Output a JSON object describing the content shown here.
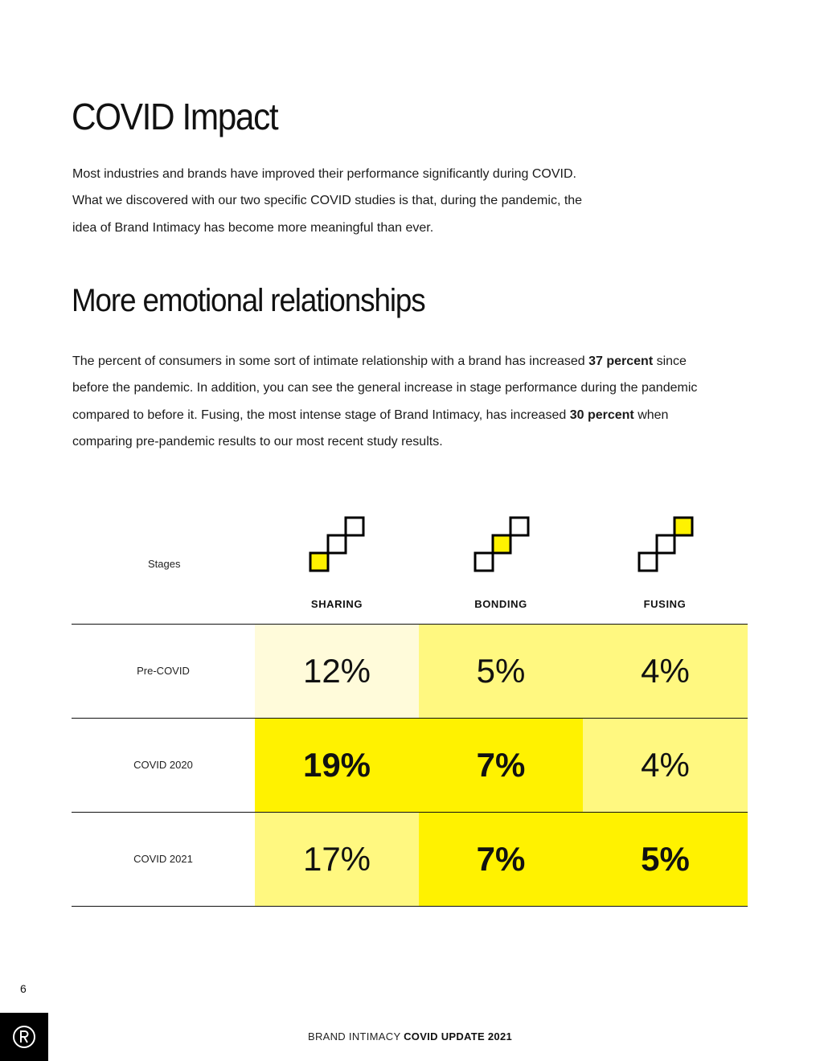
{
  "heading": "COVID Impact",
  "intro": "Most industries and brands have improved their performance significantly during COVID. What we discovered with our two specific COVID studies is that, during the pandemic, the idea of Brand Intimacy has become more meaningful than ever.",
  "subheading": "More emotional relationships",
  "body": {
    "part1": "The percent of consumers in some sort of intimate relationship with a brand has increased ",
    "bold1": "37 percent",
    "part2": " since before the pandemic. In addition, you can see the general increase in stage performance during the pandemic compared to before it. Fusing, the most intense stage of Brand Intimacy, has increased ",
    "bold2": "30 percent",
    "part3": " when comparing pre-pandemic results to our most recent study results."
  },
  "table": {
    "stages_label": "Stages",
    "stages": [
      {
        "name": "SHARING",
        "icon": "stairs-step-1-icon"
      },
      {
        "name": "BONDING",
        "icon": "stairs-step-2-icon"
      },
      {
        "name": "FUSING",
        "icon": "stairs-step-3-icon"
      }
    ],
    "rows": [
      {
        "label": "Pre-COVID",
        "values": [
          "12%",
          "5%",
          "4%"
        ]
      },
      {
        "label": "COVID 2020",
        "values": [
          "19%",
          "7%",
          "4%"
        ]
      },
      {
        "label": "COVID 2021",
        "values": [
          "17%",
          "7%",
          "5%"
        ]
      }
    ]
  },
  "colors": {
    "accent": "#FFF200",
    "light": "#FFF880",
    "pale": "#FFFBDA"
  },
  "chart_data": {
    "type": "table",
    "title": "More emotional relationships",
    "columns": [
      "SHARING",
      "BONDING",
      "FUSING"
    ],
    "rows": [
      "Pre-COVID",
      "COVID 2020",
      "COVID 2021"
    ],
    "values": [
      [
        12,
        5,
        4
      ],
      [
        19,
        7,
        4
      ],
      [
        17,
        7,
        5
      ]
    ],
    "unit": "%"
  },
  "page_number": "6",
  "footer": {
    "light": "BRAND INTIMACY",
    "strong": "COVID UPDATE 2021"
  },
  "logo_icon": "registered-r-icon"
}
